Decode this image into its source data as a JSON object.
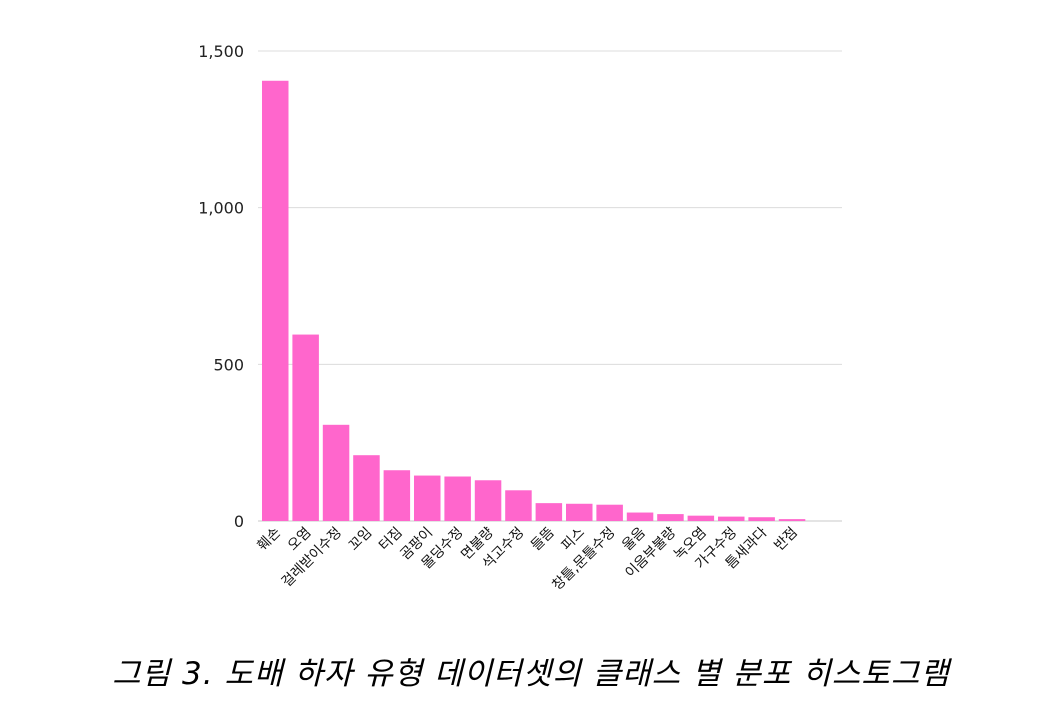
{
  "caption": "그림 3. 도배 하자 유형 데이터셋의 클래스 별 분포 히스토그램",
  "chart_data": {
    "type": "bar",
    "title": "",
    "xlabel": "",
    "ylabel": "",
    "ylim": [
      0,
      1500
    ],
    "yticks": [
      0,
      500,
      1000,
      1500
    ],
    "ytick_labels": [
      "0",
      "500",
      "1,000",
      "1,500"
    ],
    "grid": true,
    "bar_color": "#ff66cc",
    "categories": [
      "훼손",
      "오염",
      "걸레받이수정",
      "꼬임",
      "터짐",
      "곰팡이",
      "몰딩수정",
      "면불량",
      "석고수정",
      "들뜸",
      "피스",
      "창틀,문틀수정",
      "울음",
      "이음부불량",
      "녹오염",
      "가구수정",
      "틈새과다",
      "반점"
    ],
    "values": [
      1405,
      595,
      307,
      210,
      162,
      145,
      142,
      130,
      98,
      57,
      55,
      52,
      27,
      22,
      17,
      14,
      12,
      6
    ]
  }
}
